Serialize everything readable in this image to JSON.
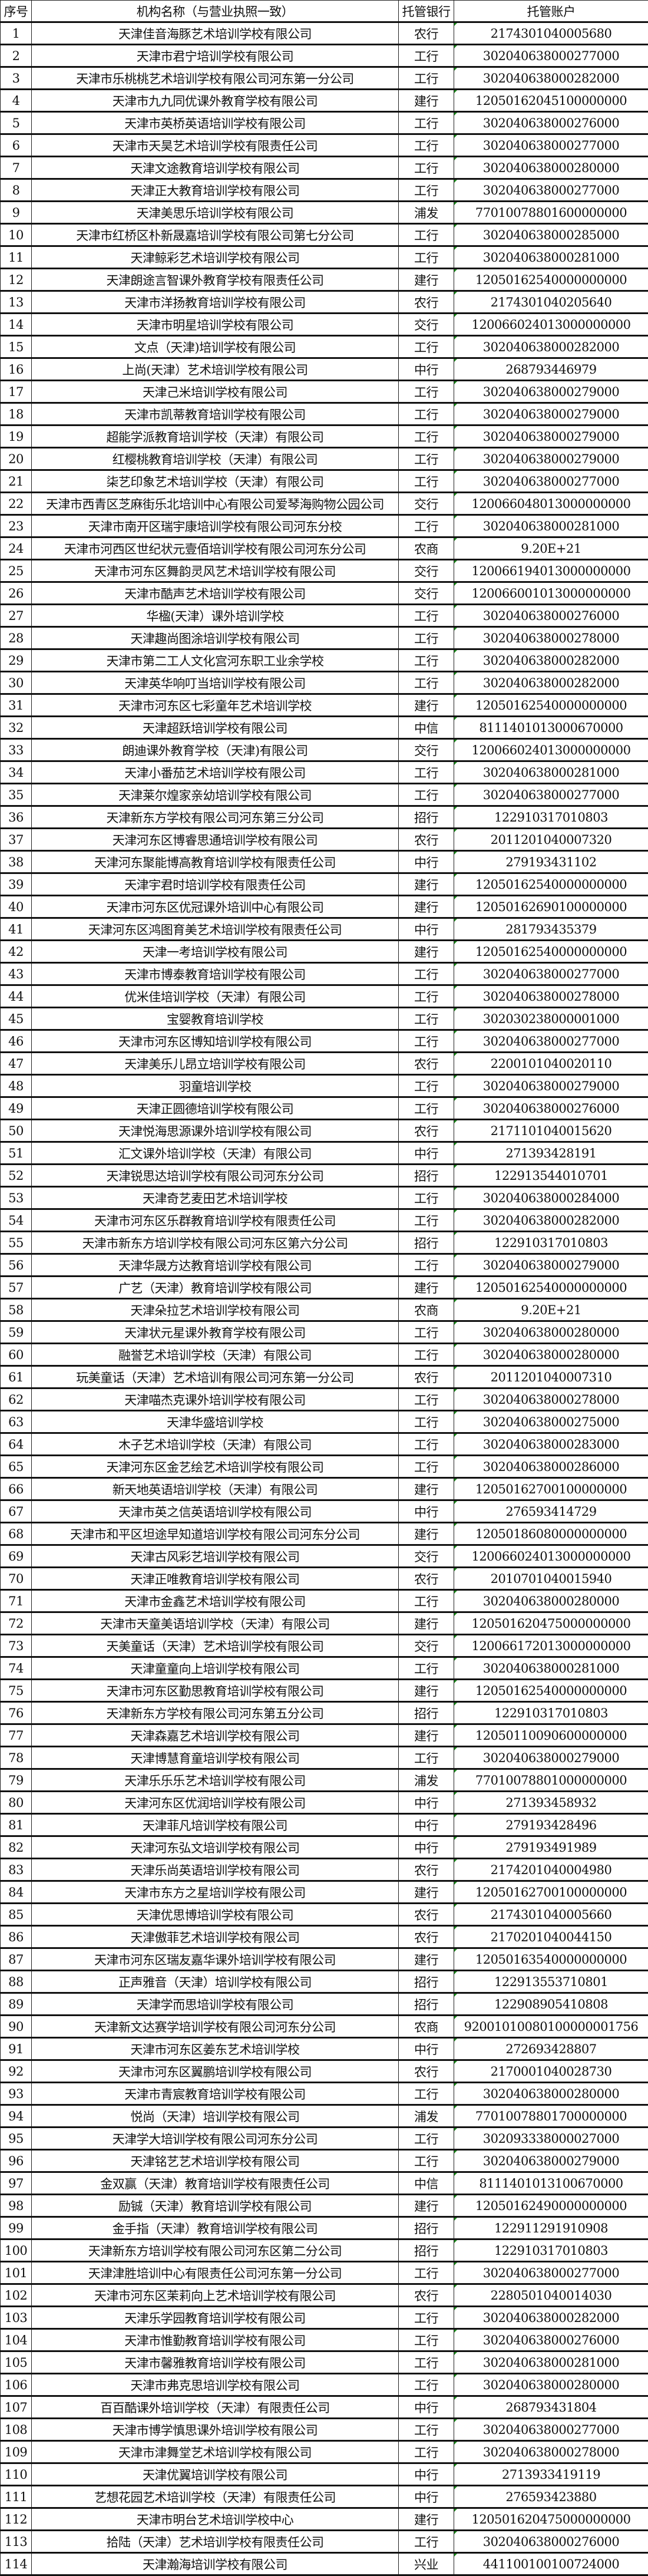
{
  "headers": [
    "序号",
    "机构名称（与营业执照一致）",
    "托管银行",
    "托管账户"
  ],
  "rows": [
    [
      "1",
      "天津佳音海豚艺术培训学校有限公司",
      "农行",
      "2174301040005680"
    ],
    [
      "2",
      "天津市君宁培训学校有限公司",
      "工行",
      "302040638000277000"
    ],
    [
      "3",
      "天津市乐桃桃艺术培训学校有限公司河东第一分公司",
      "工行",
      "302040638000282000"
    ],
    [
      "4",
      "天津市九九同优课外教育学校有限公司",
      "建行",
      "12050162045100000000"
    ],
    [
      "5",
      "天津市英桥英语培训学校有限公司",
      "工行",
      "302040638000276000"
    ],
    [
      "6",
      "天津市天昊艺术培训学校有限责任公司",
      "工行",
      "302040638000277000"
    ],
    [
      "7",
      "天津文途教育培训学校有限公司",
      "工行",
      "302040638000280000"
    ],
    [
      "8",
      "天津正大教育培训学校有限公司",
      "工行",
      "302040638000277000"
    ],
    [
      "9",
      "天津美思乐培训学校有限公司",
      "浦发",
      "77010078801600000000"
    ],
    [
      "10",
      "天津市红桥区朴新晟嘉培训学校有限公司第七分公司",
      "工行",
      "302040638000285000"
    ],
    [
      "11",
      "天津鲸彩艺术培训学校有限公司",
      "工行",
      "302040638000281000"
    ],
    [
      "12",
      "天津朗途言智课外教育学校有限责任公司",
      "建行",
      "12050162540000000000"
    ],
    [
      "13",
      "天津市洋扬教育培训学校有限公司",
      "农行",
      "2174301040205640"
    ],
    [
      "14",
      "天津市明星培训学校有限公司",
      "交行",
      "120066024013000000000"
    ],
    [
      "15",
      "文点（天津)培训学校有限公司",
      "工行",
      "302040638000282000"
    ],
    [
      "16",
      "上尚(天津）艺术培训学校有限公司",
      "中行",
      "268793446979"
    ],
    [
      "17",
      "天津己米培训学校有限公司",
      "工行",
      "302040638000279000"
    ],
    [
      "18",
      "天津市凯蒂教育培训学校有限公司",
      "工行",
      "302040638000279000"
    ],
    [
      "19",
      "超能学派教育培训学校（天津）有限公司",
      "工行",
      "302040638000279000"
    ],
    [
      "20",
      "红樱桃教育培训学校（天津）有限公司",
      "工行",
      "302040638000279000"
    ],
    [
      "21",
      "柒艺印象艺术培训学校（天津）有限公司",
      "工行",
      "302040638000277000"
    ],
    [
      "22",
      "天津市西青区芝麻街乐北培训中心有限公司爱琴海购物公园公司",
      "交行",
      "120066048013000000000"
    ],
    [
      "23",
      "天津市南开区瑞宇康培训学校有限公司河东分校",
      "工行",
      "302040638000281000"
    ],
    [
      "24",
      "天津市河西区世纪状元壹佰培训学校有限公司河东分公司",
      "农商",
      "9.20E+21"
    ],
    [
      "25",
      "天津市河东区舞韵灵风艺术培训学校有限公司",
      "交行",
      "120066194013000000000"
    ],
    [
      "26",
      "天津市酷声艺术培训学校有限公司",
      "交行",
      "120066001013000000000"
    ],
    [
      "27",
      "华楹(天津）课外培训学校",
      "工行",
      "302040638000276000"
    ],
    [
      "28",
      "天津趣尚图涂培训学校有限公司",
      "工行",
      "302040638000278000"
    ],
    [
      "29",
      "天津市第二工人文化宫河东职工业余学校",
      "工行",
      "302040638000282000"
    ],
    [
      "30",
      "天津英华响叮当培训学校有限公司",
      "工行",
      "302040638000282000"
    ],
    [
      "31",
      "天津市河东区七彩童年艺术培训学校",
      "建行",
      "12050162540000000000"
    ],
    [
      "32",
      "天津超跃培训学校有限公司",
      "中信",
      "8111401013000670000"
    ],
    [
      "33",
      "朗迪课外教育学校（天津)有限公司",
      "交行",
      "120066024013000000000"
    ],
    [
      "34",
      "天津小番茄艺术培训学校有限公司",
      "工行",
      "302040638000281000"
    ],
    [
      "35",
      "天津莱尔煌家亲幼培训学校有限公司",
      "工行",
      "302040638000277000"
    ],
    [
      "36",
      "天津新东方学校有限公司河东第三分公司",
      "招行",
      "122910317010803"
    ],
    [
      "37",
      "天津河东区博睿思通培训学校有限公司",
      "农行",
      "2011201040007320"
    ],
    [
      "38",
      "天津河东聚能博高教育培训学校有限责任公司",
      "中行",
      "279193431102"
    ],
    [
      "39",
      "天津宇君时培训学校有限责任公司",
      "建行",
      "12050162540000000000"
    ],
    [
      "40",
      "天津市河东区优冠课外培训中心有限公司",
      "建行",
      "12050162690100000000"
    ],
    [
      "41",
      "天津河东区鸿图育美艺术培训学校有限责任公司",
      "中行",
      "281793435379"
    ],
    [
      "42",
      "天津一考培训学校有限公司",
      "建行",
      "12050162540000000000"
    ],
    [
      "43",
      "天津市博泰教育培训学校有限公司",
      "工行",
      "302040638000277000"
    ],
    [
      "44",
      "优米佳培训学校（天津）有限公司",
      "工行",
      "302040638000278000"
    ],
    [
      "45",
      "宝婴教育培训学校",
      "工行",
      "302030238000001000"
    ],
    [
      "46",
      "天津市河东区博知培训学校有限公司",
      "工行",
      "302040638000277000"
    ],
    [
      "47",
      "天津美乐儿昂立培训学校有限公司",
      "农行",
      "2200101040020110"
    ],
    [
      "48",
      "羽童培训学校",
      "工行",
      "302040638000279000"
    ],
    [
      "49",
      "天津正圆德培训学校有限公司",
      "工行",
      "302040638000276000"
    ],
    [
      "50",
      "天津悦海思源课外培训学校有限公司",
      "农行",
      "2171101040015620"
    ],
    [
      "51",
      "汇文课外培训学校（天津）有限公司",
      "中行",
      "271393428191"
    ],
    [
      "52",
      "天津锐思达培训学校有限公司河东分公司",
      "招行",
      "122913544010701"
    ],
    [
      "53",
      "天津奇艺麦田艺术培训学校",
      "工行",
      "302040638000284000"
    ],
    [
      "54",
      "天津市河东区乐群教育培训学校有限责任公司",
      "工行",
      "302040638000282000"
    ],
    [
      "55",
      "天津市新东方培训学校有限公司河东区第六分公司",
      "招行",
      "122910317010803"
    ],
    [
      "56",
      "天津华晟方达教育培训学校有限公司",
      "工行",
      "302040638000279000"
    ],
    [
      "57",
      "广艺（天津）教育培训学校有限公司",
      "建行",
      "12050162540000000000"
    ],
    [
      "58",
      "天津朵拉艺术培训学校有限公司",
      "农商",
      "9.20E+21"
    ],
    [
      "59",
      "天津状元星课外教育学校有限公司",
      "工行",
      "302040638000280000"
    ],
    [
      "60",
      "融誉艺术培训学校（天津）有限公司",
      "工行",
      "302040638000280000"
    ],
    [
      "61",
      "玩美童话（天津）艺术培训有限公司河东第一分公司",
      "农行",
      "2011201040007310"
    ],
    [
      "62",
      "天津喵杰克课外培训学校有限公司",
      "工行",
      "302040638000278000"
    ],
    [
      "63",
      "天津华盛培训学校",
      "工行",
      "302040638000275000"
    ],
    [
      "64",
      "木子艺术培训学校（天津）有限公司",
      "工行",
      "302040638000283000"
    ],
    [
      "65",
      "天津河东区金艺绘艺术培训学校有限公司",
      "工行",
      "302040638000286000"
    ],
    [
      "66",
      "新天地英语培训学校（天津）有限公司",
      "建行",
      "12050162700100000000"
    ],
    [
      "67",
      "天津市英之信英语培训学校有限公司",
      "中行",
      "276593414729"
    ],
    [
      "68",
      "天津市和平区坦途早知道培训学校有限公司河东分公司",
      "建行",
      "12050186080000000000"
    ],
    [
      "69",
      "天津古风彩艺培训学校有限公司",
      "交行",
      "120066024013000000000"
    ],
    [
      "70",
      "天津正唯教育培训学校有限公司",
      "农行",
      "2010701040015940"
    ],
    [
      "71",
      "天津市金鑫艺术培训学校有限公司",
      "工行",
      "302040638000280000"
    ],
    [
      "72",
      "天津市天童美语培训学校（天津）有限公司",
      "建行",
      "120501620475000000000"
    ],
    [
      "73",
      "天美童话（天津）艺术培训学校有限公司",
      "交行",
      "120066172013000000000"
    ],
    [
      "74",
      "天津童童向上培训学校有限公司",
      "工行",
      "302040638000281000"
    ],
    [
      "75",
      "天津市河东区勤思教育培训学校有限公司",
      "建行",
      "12050162540000000000"
    ],
    [
      "76",
      "天津新东方学校有限公司河东第五分公司",
      "招行",
      "122910317010803"
    ],
    [
      "77",
      "天津森嘉艺术培训学校有限公司",
      "建行",
      "12050110090600000000"
    ],
    [
      "78",
      "天津博慧育童培训学校有限公司",
      "工行",
      "302040638000279000"
    ],
    [
      "79",
      "天津乐乐乐艺术培训学校有限公司",
      "浦发",
      "77010078801000000000"
    ],
    [
      "80",
      "天津河东区优润培训学校有限公司",
      "中行",
      "271393458932"
    ],
    [
      "81",
      "天津菲凡培训学校有限公司",
      "中行",
      "279193428496"
    ],
    [
      "82",
      "天津河东弘文培训学校有限公司",
      "中行",
      "279193491989"
    ],
    [
      "83",
      "天津乐尚英语培训学校有限公司",
      "农行",
      "2174201040004980"
    ],
    [
      "84",
      "天津市东方之星培训学校有限公司",
      "建行",
      "12050162700100000000"
    ],
    [
      "85",
      "天津优思博培训学校有限公司",
      "农行",
      "2174301040005660"
    ],
    [
      "86",
      "天津傲菲艺术培训学校有限公司",
      "农行",
      "2170201040044150"
    ],
    [
      "87",
      "天津市河东区瑞友嘉华课外培训学校有限公司",
      "建行",
      "12050163540000000000"
    ],
    [
      "88",
      "正声雅音（天津）培训学校有限公司",
      "招行",
      "122913553710801"
    ],
    [
      "89",
      "天津学而思培训学校有限公司",
      "招行",
      "122908905410808"
    ],
    [
      "90",
      "天津新文达赛学培训学校有限公司河东分公司",
      "农商",
      "92001010080100000001756"
    ],
    [
      "91",
      "天津市河东区姜东艺术培训学校",
      "中行",
      "272693428807"
    ],
    [
      "92",
      "天津市河东区翼鹏培训学校有限公司",
      "农行",
      "2170001040028730"
    ],
    [
      "93",
      "天津市青宸教育培训学校有限公司",
      "工行",
      "302040638000280000"
    ],
    [
      "94",
      "悦尚（天津）培训学校有限公司",
      "浦发",
      "77010078801700000000"
    ],
    [
      "95",
      "天津学大培训学校有限公司河东分公司",
      "工行",
      "302093338000027000"
    ],
    [
      "96",
      "天津铭艺艺术培训学校有限公司",
      "工行",
      "302040638000279000"
    ],
    [
      "97",
      "金双赢（天津）教育培训学校有限责任公司",
      "中信",
      "8111401013100670000"
    ],
    [
      "98",
      "励铖（天津）教育培训学校有限公司",
      "建行",
      "12050162490000000000"
    ],
    [
      "99",
      "金手指（天津）教育培训学校有限公司",
      "招行",
      "122911291910908"
    ],
    [
      "100",
      "天津新东方培训学校有限公司河东区第二分公司",
      "招行",
      "122910317010803"
    ],
    [
      "101",
      "天津津胜培训中心有限责任公司河东第一分公司",
      "工行",
      "302040638000277000"
    ],
    [
      "102",
      "天津市河东区茉莉向上艺术培训学校有限公司",
      "农行",
      "2280501040014030"
    ],
    [
      "103",
      "天津乐学园教育培训学校有限公司",
      "工行",
      "302040638000282000"
    ],
    [
      "104",
      "天津市惟勤教育培训学校有限公司",
      "工行",
      "302040638000276000"
    ],
    [
      "105",
      "天津市馨雅教育培训学校有限公司",
      "工行",
      "302040638000281000"
    ],
    [
      "106",
      "天津市弗克思培训学校有限公司",
      "工行",
      "302040638000280000"
    ],
    [
      "107",
      "百百酷课外培训学校（天津）有限责任公司",
      "中行",
      "268793431804"
    ],
    [
      "108",
      "天津市博学慎思课外培训学校有限公司",
      "工行",
      "302040638000277000"
    ],
    [
      "109",
      "天津市津舞堂艺术培训学校有限公司",
      "工行",
      "302040638000278000"
    ],
    [
      "110",
      "天津优翼培训学校有限公司",
      "中行",
      "2713933419119"
    ],
    [
      "111",
      "艺想花园艺术培训学校（天津）有限责任公司",
      "中行",
      "276593423880"
    ],
    [
      "112",
      "天津市明台艺术培训学校中心",
      "建行",
      "120501620475000000000"
    ],
    [
      "113",
      "拾陆（天津）艺术培训学校有限责任公司",
      "工行",
      "302040638000276000"
    ],
    [
      "114",
      "天津瀚海培训学校有限公司",
      "兴业",
      "441100100100724000"
    ]
  ]
}
